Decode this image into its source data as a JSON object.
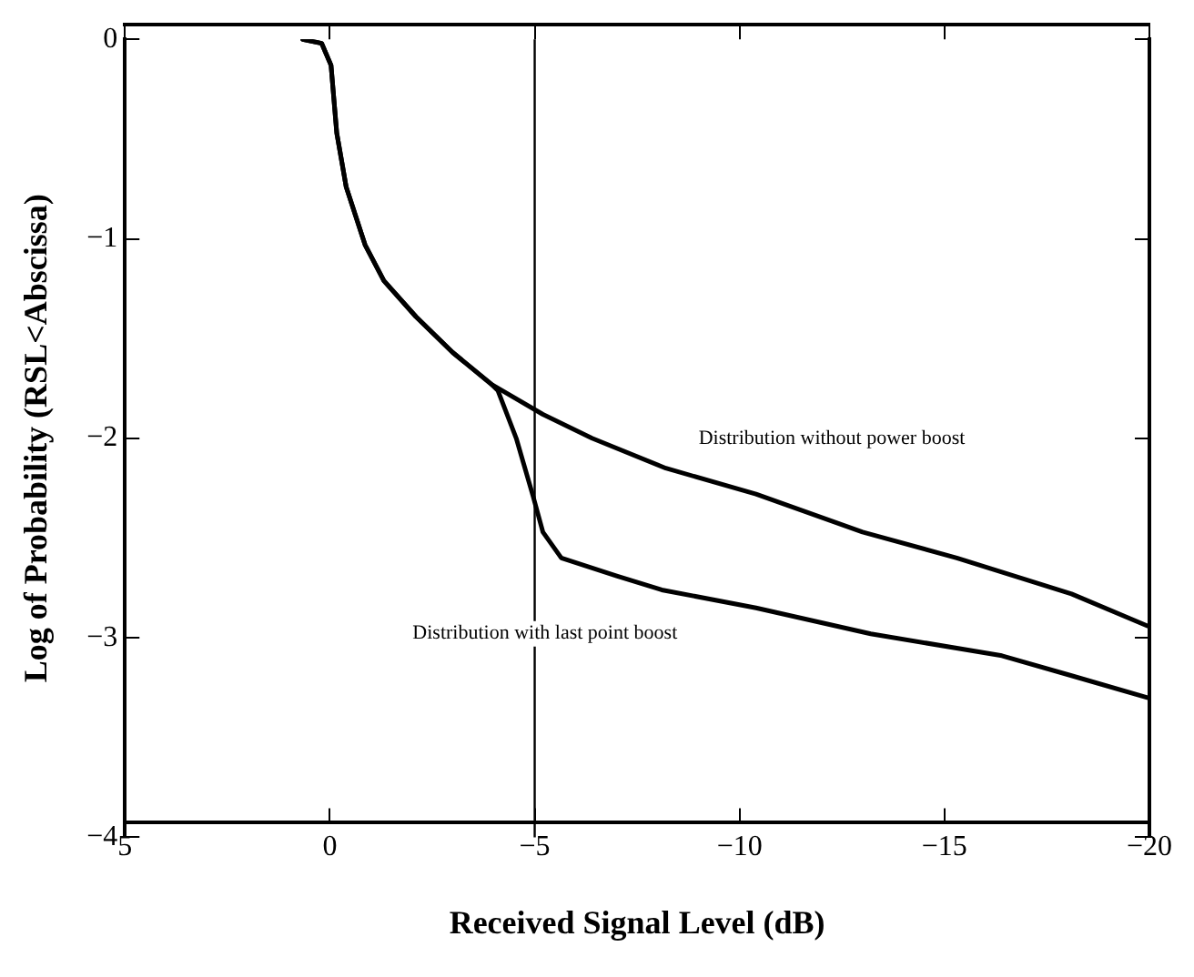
{
  "chart_data": {
    "type": "line",
    "xlabel": "Received Signal Level (dB)",
    "ylabel": "Log of Probability (RSL<Abscissa)",
    "xlim": [
      5,
      -20
    ],
    "xticks": [
      5,
      0,
      {
        "value": -5,
        "label": "−5"
      },
      {
        "value": -10,
        "label": "−10"
      },
      {
        "value": -15,
        "label": "−15"
      },
      {
        "value": -20,
        "label": "−20"
      }
    ],
    "ylim": [
      -4,
      0
    ],
    "yticks": [
      {
        "value": -4,
        "label": "−4"
      },
      {
        "value": -3,
        "label": "−3"
      },
      {
        "value": -2,
        "label": "−2"
      },
      {
        "value": -1,
        "label": "−1"
      },
      0
    ],
    "grid": false,
    "legend": false,
    "marker": "none",
    "line_style": "solid",
    "series": [
      {
        "color": "#000000",
        "x": [
          0.66,
          0.2,
          -0.03,
          -0.17,
          -0.4,
          -0.86,
          -1.32,
          -2.1,
          -3.0,
          -3.95,
          -5.2,
          -6.4,
          -8.2,
          -10.4,
          -13.0,
          -15.3,
          -18.1,
          -19.95
        ],
        "values": [
          0,
          -0.02,
          -0.13,
          -0.47,
          -0.74,
          -1.03,
          -1.21,
          -1.39,
          -1.57,
          -1.73,
          -1.88,
          -2.0,
          -2.15,
          -2.28,
          -2.47,
          -2.6,
          -2.78,
          -2.94
        ]
      },
      {
        "color": "#000000",
        "x": [
          0.66,
          0.2,
          -0.03,
          -0.17,
          -0.4,
          -0.86,
          -1.32,
          -2.1,
          -3.0,
          -3.95,
          -4.1,
          -4.55,
          -4.96,
          -5.2,
          -5.65,
          -7.0,
          -8.1,
          -10.4,
          -13.2,
          -16.4,
          -18.1,
          -19.95
        ],
        "values": [
          0,
          -0.02,
          -0.13,
          -0.47,
          -0.74,
          -1.03,
          -1.21,
          -1.39,
          -1.57,
          -1.73,
          -1.76,
          -2.0,
          -2.29,
          -2.47,
          -2.6,
          -2.69,
          -2.76,
          -2.85,
          -2.98,
          -3.09,
          -3.19,
          -3.3
        ]
      }
    ],
    "ref_lines": [
      {
        "axis": "x",
        "value": -5,
        "color": "#000000"
      }
    ],
    "annotations": [
      "Distribution without power boost",
      "Distribution with last point boost"
    ]
  }
}
